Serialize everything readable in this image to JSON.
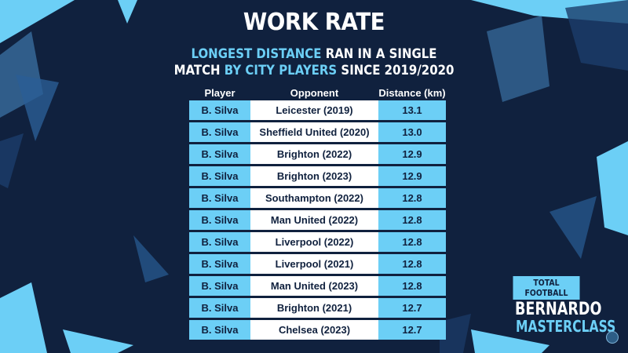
{
  "title": "WORK RATE",
  "subtitle": {
    "line1": [
      {
        "text": "LONGEST DISTANCE",
        "highlight": true
      },
      {
        "text": " RAN IN A SINGLE",
        "highlight": false
      }
    ],
    "line2": [
      {
        "text": "MATCH ",
        "highlight": false
      },
      {
        "text": "BY CITY PLAYERS",
        "highlight": true
      },
      {
        "text": " SINCE 2019/2020",
        "highlight": false
      }
    ]
  },
  "table": {
    "headers": [
      "Player",
      "Opponent",
      "Distance (km)"
    ],
    "rows": [
      [
        "B. Silva",
        "Leicester (2019)",
        "13.1"
      ],
      [
        "B. Silva",
        "Sheffield United (2020)",
        "13.0"
      ],
      [
        "B. Silva",
        "Brighton (2022)",
        "12.9"
      ],
      [
        "B. Silva",
        "Brighton (2023)",
        "12.9"
      ],
      [
        "B. Silva",
        "Southampton (2022)",
        "12.8"
      ],
      [
        "B. Silva",
        "Man United (2022)",
        "12.8"
      ],
      [
        "B. Silva",
        "Liverpool (2022)",
        "12.8"
      ],
      [
        "B. Silva",
        "Liverpool (2021)",
        "12.8"
      ],
      [
        "B. Silva",
        "Man United (2023)",
        "12.8"
      ],
      [
        "B. Silva",
        "Brighton (2021)",
        "12.7"
      ],
      [
        "B. Silva",
        "Chelsea (2023)",
        "12.7"
      ]
    ]
  },
  "brand": {
    "line1": "TOTAL FOOTBALL",
    "line2": "BERNARDO",
    "line3": "MASTERCLASS"
  },
  "colors": {
    "background": "#10213e",
    "accent": "#6ccff6",
    "white": "#ffffff"
  },
  "icons": {
    "crest": "club-crest-icon"
  }
}
